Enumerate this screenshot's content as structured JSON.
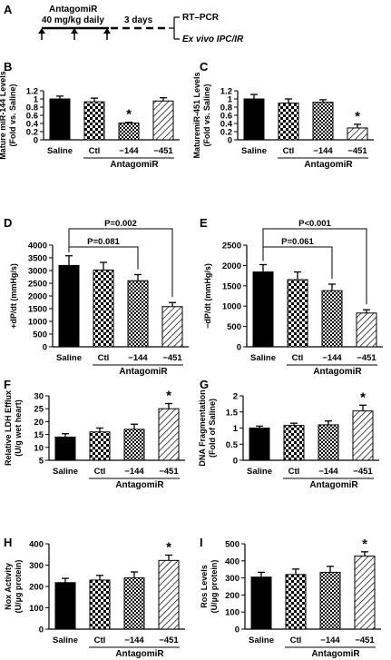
{
  "schematic": {
    "panel_label": "A",
    "title": "AntagomiR",
    "dose": "40 mg/kg daily",
    "gap": "3 days",
    "out1": "RT–PCR",
    "out2": "Ex vivo IPC/IR"
  },
  "common": {
    "categories": [
      "Saline",
      "Ctl",
      "−144",
      "−451"
    ],
    "group_label": "AntagomiR",
    "star": "*",
    "bar_fills": [
      "#000000",
      "checker-large",
      "checker-small",
      "diagonal-hatch"
    ]
  },
  "chart_data": [
    {
      "id": "B",
      "type": "bar",
      "panel_label": "B",
      "ylabel": "Mature miR-144 Levels\n(Fold vs. Saline)",
      "categories": [
        "Saline",
        "Ctl",
        "−144",
        "−451"
      ],
      "values": [
        1.0,
        0.93,
        0.41,
        0.95
      ],
      "errors": [
        0.07,
        0.09,
        0.02,
        0.08
      ],
      "ylim": [
        0,
        1.2
      ],
      "yticks": [
        0,
        0.2,
        0.4,
        0.6,
        0.8,
        1,
        1.2
      ],
      "significant": [
        2
      ]
    },
    {
      "id": "C",
      "type": "bar",
      "panel_label": "C",
      "ylabel": "MaturemiR-451 Levels\n(Fold vs. Saline)",
      "categories": [
        "Saline",
        "Ctl",
        "−144",
        "−451"
      ],
      "values": [
        1.0,
        0.9,
        0.92,
        0.29
      ],
      "errors": [
        0.11,
        0.1,
        0.06,
        0.09
      ],
      "ylim": [
        0,
        1.2
      ],
      "yticks": [
        0,
        0.2,
        0.4,
        0.6,
        0.8,
        1,
        1.2
      ],
      "significant": [
        3
      ]
    },
    {
      "id": "D",
      "type": "bar",
      "panel_label": "D",
      "ylabel": "+dP/dt (mmHg/s)",
      "categories": [
        "Saline",
        "Ctl",
        "−144",
        "−451"
      ],
      "values": [
        3200,
        3020,
        2600,
        1580
      ],
      "errors": [
        380,
        300,
        240,
        160
      ],
      "ylim": [
        0,
        4000
      ],
      "yticks": [
        0,
        500,
        1000,
        1500,
        2000,
        2500,
        3000,
        3500,
        4000
      ],
      "significant": [],
      "comparisons": [
        {
          "to": 2,
          "label": "P=0.081"
        },
        {
          "to": 3,
          "label": "P=0.002"
        }
      ]
    },
    {
      "id": "E",
      "type": "bar",
      "panel_label": "E",
      "ylabel": "−dP/dt (mmHg/s)",
      "categories": [
        "Saline",
        "Ctl",
        "−144",
        "−451"
      ],
      "values": [
        1840,
        1650,
        1380,
        830
      ],
      "errors": [
        180,
        190,
        160,
        80
      ],
      "ylim": [
        0,
        2500
      ],
      "yticks": [
        0,
        500,
        1000,
        1500,
        2000,
        2500
      ],
      "significant": [],
      "comparisons": [
        {
          "to": 2,
          "label": "P=0.061"
        },
        {
          "to": 3,
          "label": "P<0.001"
        }
      ]
    },
    {
      "id": "F",
      "type": "bar",
      "panel_label": "F",
      "ylabel": "Relative LDH Efflux\n(U/g wet heart)",
      "categories": [
        "Saline",
        "Ctl",
        "−144",
        "−451"
      ],
      "values": [
        14,
        16,
        17,
        25
      ],
      "errors": [
        1.3,
        1.5,
        2,
        2
      ],
      "ylim": [
        5,
        30
      ],
      "yticks": [
        5,
        10,
        15,
        20,
        25,
        30
      ],
      "significant": [
        3
      ]
    },
    {
      "id": "G",
      "type": "bar",
      "panel_label": "G",
      "ylabel": "DNA Fragmentation\n(Fold of Saline)",
      "categories": [
        "Saline",
        "Ctl",
        "−144",
        "−451"
      ],
      "values": [
        1.0,
        1.08,
        1.1,
        1.53
      ],
      "errors": [
        0.06,
        0.07,
        0.12,
        0.18
      ],
      "ylim": [
        0,
        2
      ],
      "yticks": [
        0,
        0.5,
        1,
        1.5,
        2
      ],
      "significant": [
        3
      ]
    },
    {
      "id": "H",
      "type": "bar",
      "panel_label": "H",
      "ylabel": "Nox Activity\n(U/µg protein)",
      "categories": [
        "Saline",
        "Ctl",
        "−144",
        "−451"
      ],
      "values": [
        218,
        230,
        240,
        322
      ],
      "errors": [
        20,
        22,
        28,
        25
      ],
      "ylim": [
        0,
        400
      ],
      "yticks": [
        0,
        100,
        200,
        300,
        400
      ],
      "significant": [
        3
      ]
    },
    {
      "id": "I",
      "type": "bar",
      "panel_label": "I",
      "ylabel": "Ros Levels\n(U/µg protein)",
      "categories": [
        "Saline",
        "Ctl",
        "−144",
        "−451"
      ],
      "values": [
        305,
        320,
        333,
        428
      ],
      "errors": [
        28,
        32,
        35,
        25
      ],
      "ylim": [
        0,
        500
      ],
      "yticks": [
        0,
        100,
        200,
        300,
        400,
        500
      ],
      "significant": [
        3
      ]
    }
  ]
}
